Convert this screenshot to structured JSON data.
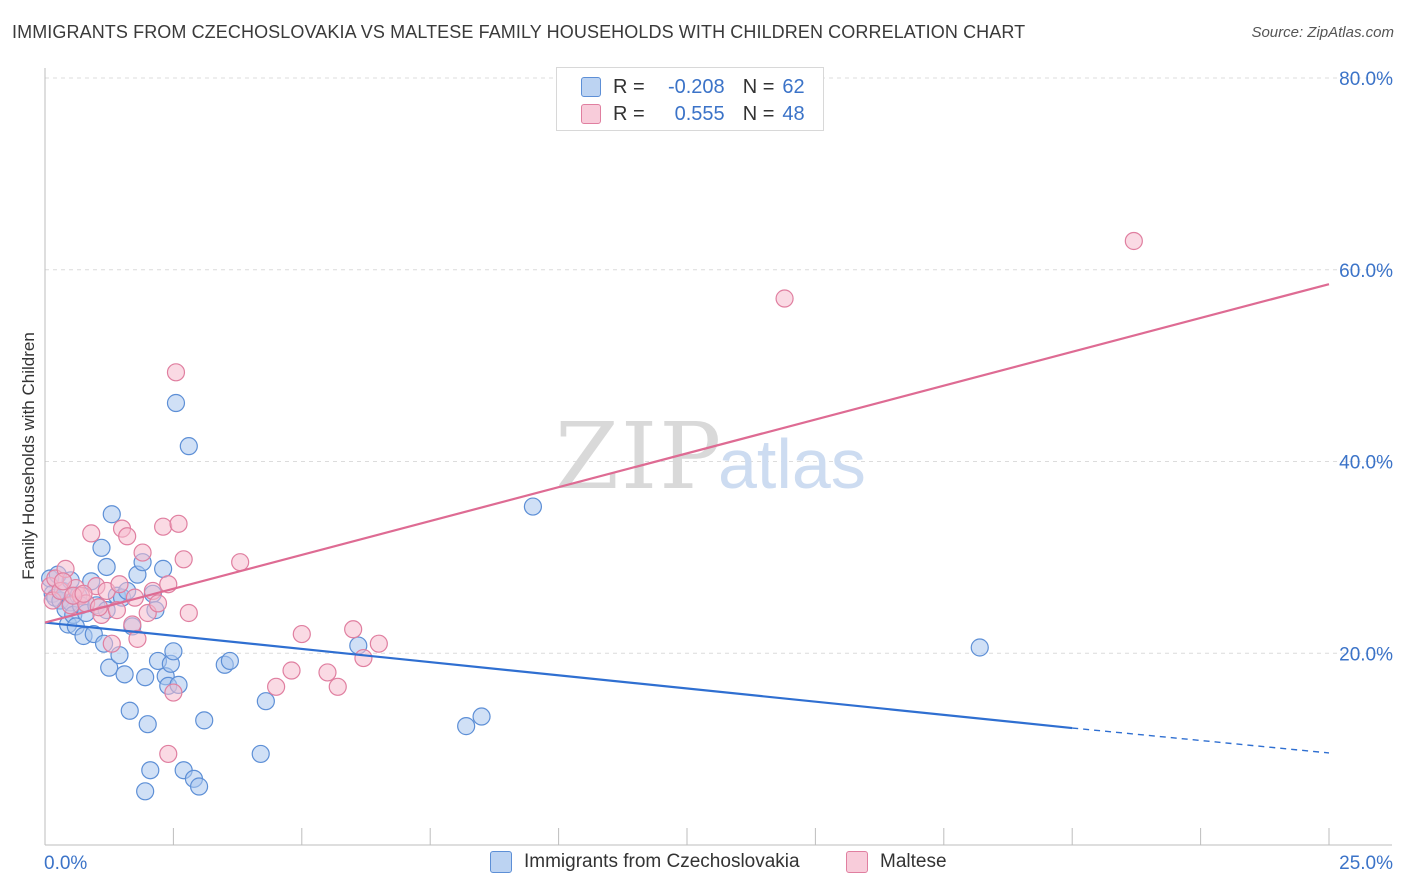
{
  "header": {
    "title": "IMMIGRANTS FROM CZECHOSLOVAKIA VS MALTESE FAMILY HOUSEHOLDS WITH CHILDREN CORRELATION CHART",
    "source": "Source: ZipAtlas.com"
  },
  "legend": {
    "rows": [
      {
        "r_label": "R =",
        "r_value": "-0.208",
        "n_label": "N =",
        "n_value": "62"
      },
      {
        "r_label": "R =",
        "r_value": "0.555",
        "n_label": "N =",
        "n_value": "48"
      }
    ]
  },
  "watermark": {
    "zip": "ZIP",
    "atlas": "atlas"
  },
  "colors": {
    "blue_fill": "#a9c6ee",
    "blue_stroke": "#5d8fd6",
    "blue_line": "#2f6fd1",
    "pink_fill": "#f6bccd",
    "pink_stroke": "#e07fa0",
    "pink_line": "#de6b93",
    "axis_label": "#3b73c8",
    "grid": "#dcdcdc"
  },
  "chart_data": {
    "type": "scatter",
    "title": "IMMIGRANTS FROM CZECHOSLOVAKIA VS MALTESE FAMILY HOUSEHOLDS WITH CHILDREN CORRELATION CHART",
    "xlabel": "",
    "ylabel": "Family Households with Children",
    "xlim": [
      0,
      25
    ],
    "ylim": [
      0,
      80
    ],
    "x_tick_labels": [
      "0.0%",
      "25.0%"
    ],
    "y_ticks": [
      20,
      40,
      60,
      80
    ],
    "y_tick_labels": [
      "20.0%",
      "40.0%",
      "60.0%",
      "80.0%"
    ],
    "series": [
      {
        "name": "Immigrants from Czechoslovakia",
        "color": "#5d8fd6",
        "trend": {
          "x0": 0,
          "y0": 23.2,
          "x1": 20,
          "y1": 12.2,
          "x_dash_end": 25,
          "y_dash_end": 9.6
        },
        "points": [
          [
            0.1,
            27.8
          ],
          [
            0.15,
            26.2
          ],
          [
            0.2,
            25.8
          ],
          [
            0.25,
            28.2
          ],
          [
            0.3,
            25.5
          ],
          [
            0.35,
            26.5
          ],
          [
            0.4,
            24.6
          ],
          [
            0.45,
            23.0
          ],
          [
            0.5,
            25.3
          ],
          [
            0.55,
            24.0
          ],
          [
            0.6,
            22.8
          ],
          [
            0.65,
            26.0
          ],
          [
            0.7,
            25.0
          ],
          [
            0.75,
            21.8
          ],
          [
            0.8,
            24.2
          ],
          [
            0.9,
            27.5
          ],
          [
            0.95,
            22.0
          ],
          [
            1.0,
            25.0
          ],
          [
            1.1,
            31.0
          ],
          [
            1.15,
            21.0
          ],
          [
            1.2,
            24.5
          ],
          [
            1.25,
            18.5
          ],
          [
            1.3,
            34.5
          ],
          [
            1.4,
            26.0
          ],
          [
            1.45,
            19.8
          ],
          [
            1.5,
            25.8
          ],
          [
            1.55,
            17.8
          ],
          [
            1.6,
            26.5
          ],
          [
            1.65,
            14.0
          ],
          [
            1.7,
            22.8
          ],
          [
            1.8,
            28.2
          ],
          [
            1.9,
            29.5
          ],
          [
            1.95,
            17.5
          ],
          [
            2.0,
            12.6
          ],
          [
            2.1,
            26.2
          ],
          [
            2.15,
            24.5
          ],
          [
            2.2,
            19.2
          ],
          [
            2.3,
            28.8
          ],
          [
            2.35,
            17.6
          ],
          [
            2.4,
            16.6
          ],
          [
            2.45,
            18.9
          ],
          [
            2.5,
            20.2
          ],
          [
            2.6,
            16.7
          ],
          [
            2.7,
            7.8
          ],
          [
            2.8,
            41.6
          ],
          [
            2.9,
            6.9
          ],
          [
            3.5,
            18.8
          ],
          [
            4.3,
            15.0
          ],
          [
            4.2,
            9.5
          ],
          [
            2.05,
            7.8
          ],
          [
            2.55,
            46.1
          ],
          [
            1.95,
            5.6
          ],
          [
            3.1,
            13.0
          ],
          [
            3.6,
            19.2
          ],
          [
            6.1,
            20.8
          ],
          [
            8.2,
            12.4
          ],
          [
            8.5,
            13.4
          ],
          [
            9.5,
            35.3
          ],
          [
            18.2,
            20.6
          ],
          [
            0.5,
            27.6
          ],
          [
            3.0,
            6.1
          ],
          [
            1.2,
            29.0
          ]
        ]
      },
      {
        "name": "Maltese",
        "color": "#e07fa0",
        "trend": {
          "x0": 0,
          "y0": 23.2,
          "x1": 25,
          "y1": 58.5
        },
        "points": [
          [
            0.1,
            27.0
          ],
          [
            0.15,
            25.5
          ],
          [
            0.2,
            27.8
          ],
          [
            0.3,
            26.5
          ],
          [
            0.4,
            28.8
          ],
          [
            0.5,
            25.0
          ],
          [
            0.6,
            26.8
          ],
          [
            0.7,
            26.0
          ],
          [
            0.8,
            25.2
          ],
          [
            0.9,
            32.5
          ],
          [
            1.0,
            27.0
          ],
          [
            1.1,
            24.0
          ],
          [
            1.2,
            26.5
          ],
          [
            1.3,
            21.0
          ],
          [
            1.4,
            24.5
          ],
          [
            1.5,
            33.0
          ],
          [
            1.6,
            32.2
          ],
          [
            1.7,
            23.0
          ],
          [
            1.8,
            21.5
          ],
          [
            1.9,
            30.5
          ],
          [
            2.0,
            24.2
          ],
          [
            2.1,
            26.5
          ],
          [
            2.2,
            25.2
          ],
          [
            2.3,
            33.2
          ],
          [
            2.4,
            27.2
          ],
          [
            2.5,
            15.9
          ],
          [
            2.6,
            33.5
          ],
          [
            2.7,
            29.8
          ],
          [
            2.8,
            24.2
          ],
          [
            2.55,
            49.3
          ],
          [
            3.8,
            29.5
          ],
          [
            5.0,
            22.0
          ],
          [
            5.5,
            18.0
          ],
          [
            5.7,
            16.5
          ],
          [
            6.2,
            19.5
          ],
          [
            6.5,
            21.0
          ],
          [
            2.4,
            9.5
          ],
          [
            4.5,
            16.5
          ],
          [
            4.8,
            18.2
          ],
          [
            6.0,
            22.5
          ],
          [
            14.4,
            57.0
          ],
          [
            21.2,
            63.0
          ],
          [
            0.35,
            27.5
          ],
          [
            0.55,
            26.0
          ],
          [
            0.75,
            26.2
          ],
          [
            1.05,
            24.8
          ],
          [
            1.75,
            25.8
          ],
          [
            1.45,
            27.2
          ]
        ]
      }
    ]
  },
  "bottom_legend": [
    {
      "label": "Immigrants from Czechoslovakia"
    },
    {
      "label": "Maltese"
    }
  ]
}
